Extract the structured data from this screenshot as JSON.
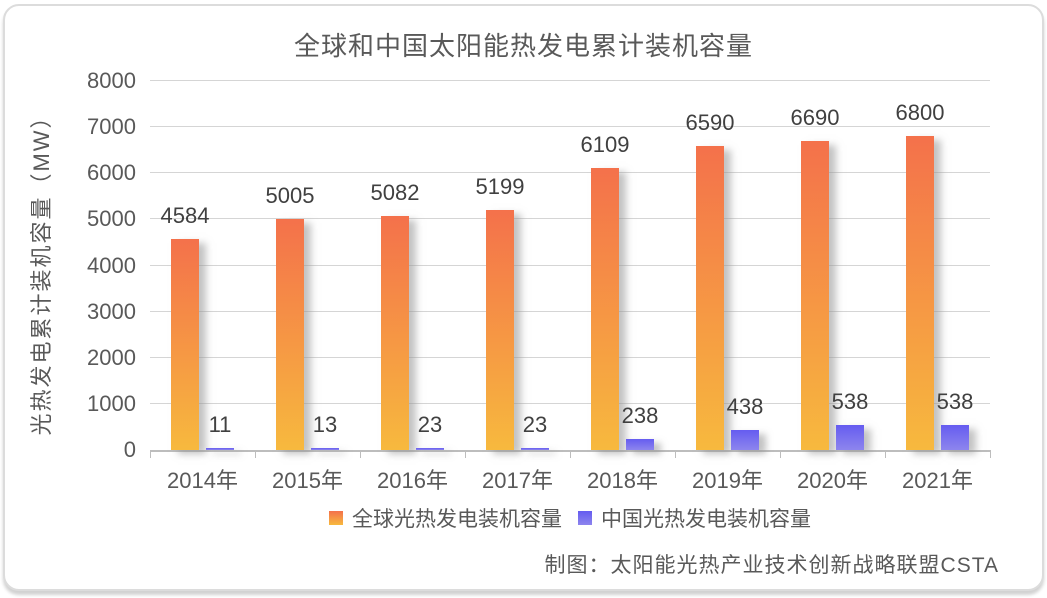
{
  "chart_data": {
    "type": "bar",
    "title": "全球和中国太阳能热发电累计装机容量",
    "xlabel": "",
    "ylabel": "光热发电累计装机容量（MW）",
    "ylim": [
      0,
      8000
    ],
    "y_tick_interval": 1000,
    "grid": true,
    "legend_position": "bottom",
    "categories": [
      "2014年",
      "2015年",
      "2016年",
      "2017年",
      "2018年",
      "2019年",
      "2020年",
      "2021年"
    ],
    "series": [
      {
        "name": "全球光热发电装机容量",
        "values": [
          4584,
          5005,
          5082,
          5199,
          6109,
          6590,
          6690,
          6800
        ],
        "color_top": "#F4714B",
        "color_bottom": "#F7B93E"
      },
      {
        "name": "中国光热发电装机容量",
        "values": [
          11,
          13,
          23,
          23,
          238,
          438,
          538,
          538
        ],
        "color_top": "#655CF0",
        "color_bottom": "#8D85EE"
      }
    ]
  },
  "source_note": "制图：太阳能光热产业技术创新战略联盟CSTA",
  "colors": {
    "gridline": "#D5D5D5",
    "axis": "#BDBDBD",
    "title_text": "#595959",
    "label_text": "#404040"
  }
}
